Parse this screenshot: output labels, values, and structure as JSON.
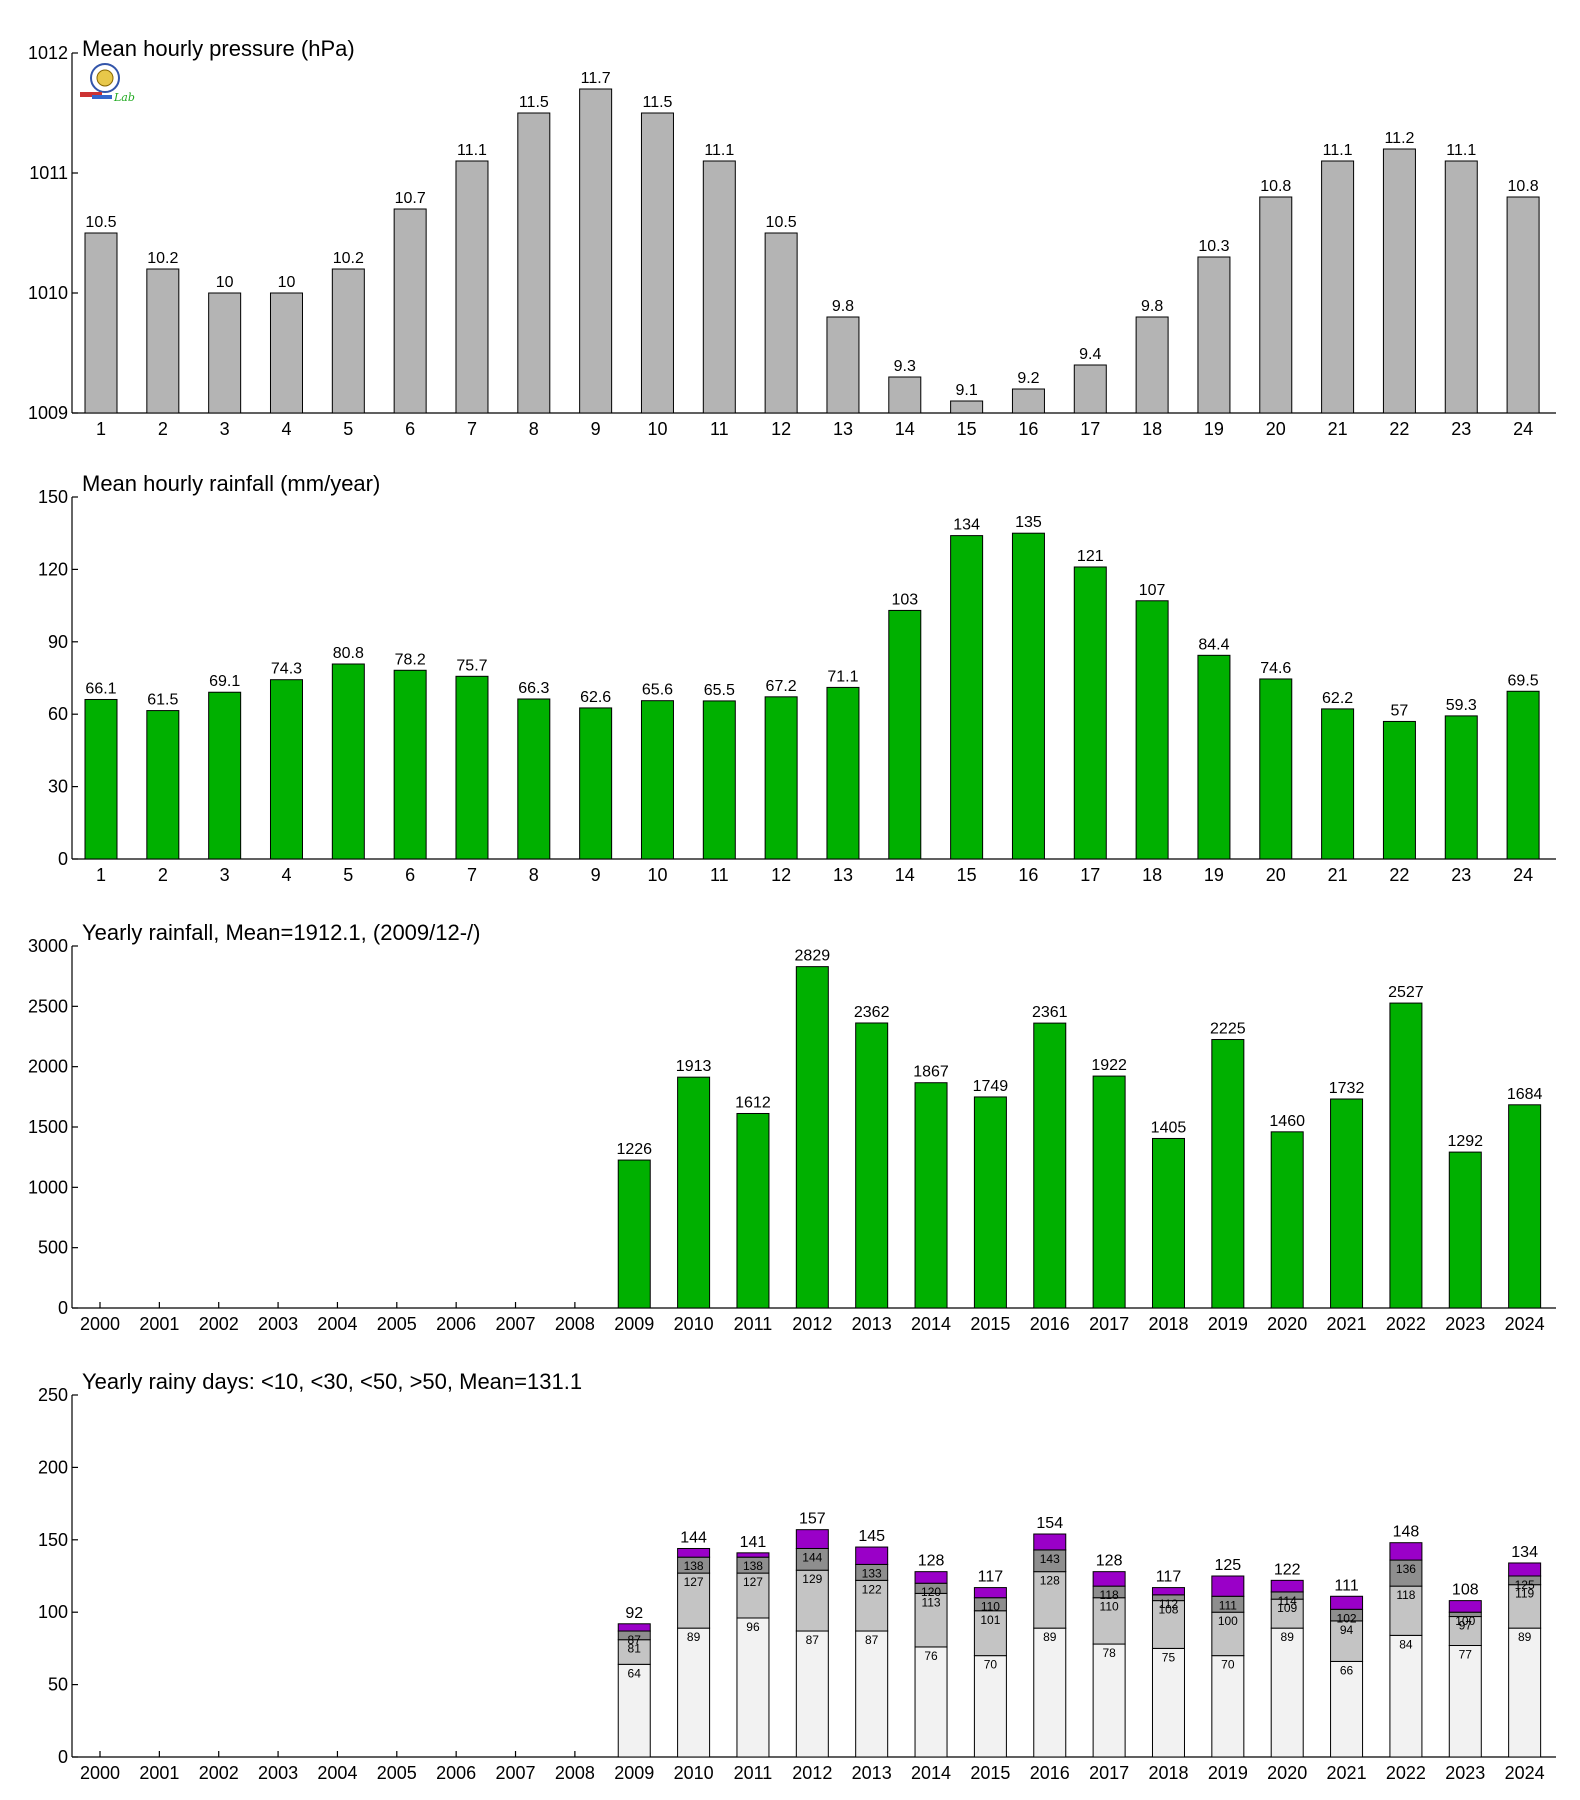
{
  "colors": {
    "pressure": "#b4b4b4",
    "rain": "#00b000",
    "seg1": "#f2f2f2",
    "seg2": "#c4c4c4",
    "seg3": "#8e8e8e",
    "seg4": "#9a00c8"
  },
  "logo": {
    "name": "lab-logo",
    "text": "Lab"
  },
  "chart_data": [
    {
      "type": "bar",
      "title": "Mean hourly pressure (hPa)",
      "categories": [
        "1",
        "2",
        "3",
        "4",
        "5",
        "6",
        "7",
        "8",
        "9",
        "10",
        "11",
        "12",
        "13",
        "14",
        "15",
        "16",
        "17",
        "18",
        "19",
        "20",
        "21",
        "22",
        "23",
        "24"
      ],
      "values": [
        1010.5,
        1010.2,
        1010.0,
        1010.0,
        1010.2,
        1010.7,
        1011.1,
        1011.5,
        1011.7,
        1011.5,
        1011.1,
        1010.5,
        1009.8,
        1009.3,
        1009.1,
        1009.2,
        1009.4,
        1009.8,
        1010.3,
        1010.8,
        1011.1,
        1011.2,
        1011.1,
        1010.8
      ],
      "data_labels": [
        "10.5",
        "10.2",
        "10",
        "10",
        "10.2",
        "10.7",
        "11.1",
        "11.5",
        "11.7",
        "11.5",
        "11.1",
        "10.5",
        "9.8",
        "9.3",
        "9.1",
        "9.2",
        "9.4",
        "9.8",
        "10.3",
        "10.8",
        "11.1",
        "11.2",
        "11.1",
        "10.8"
      ],
      "ylim": [
        1009,
        1012
      ],
      "yticks": [
        1009,
        1010,
        1011,
        1012
      ],
      "color": "#b4b4b4"
    },
    {
      "type": "bar",
      "title": "Mean hourly rainfall (mm/year)",
      "categories": [
        "1",
        "2",
        "3",
        "4",
        "5",
        "6",
        "7",
        "8",
        "9",
        "10",
        "11",
        "12",
        "13",
        "14",
        "15",
        "16",
        "17",
        "18",
        "19",
        "20",
        "21",
        "22",
        "23",
        "24"
      ],
      "values": [
        66.1,
        61.5,
        69.1,
        74.3,
        80.8,
        78.2,
        75.7,
        66.3,
        62.6,
        65.6,
        65.5,
        67.2,
        71.1,
        103,
        134,
        135,
        121,
        107,
        84.4,
        74.6,
        62.2,
        57,
        59.3,
        69.5
      ],
      "data_labels": [
        "66.1",
        "61.5",
        "69.1",
        "74.3",
        "80.8",
        "78.2",
        "75.7",
        "66.3",
        "62.6",
        "65.6",
        "65.5",
        "67.2",
        "71.1",
        "103",
        "134",
        "135",
        "121",
        "107",
        "84.4",
        "74.6",
        "62.2",
        "57",
        "59.3",
        "69.5"
      ],
      "ylim": [
        0,
        150
      ],
      "yticks": [
        0,
        30,
        60,
        90,
        120,
        150
      ],
      "color": "#00b000"
    },
    {
      "type": "bar",
      "title": "Yearly rainfall, Mean=1912.1, (2009/12-/)",
      "categories": [
        "2000",
        "2001",
        "2002",
        "2003",
        "2004",
        "2005",
        "2006",
        "2007",
        "2008",
        "2009",
        "2010",
        "2011",
        "2012",
        "2013",
        "2014",
        "2015",
        "2016",
        "2017",
        "2018",
        "2019",
        "2020",
        "2021",
        "2022",
        "2023",
        "2024"
      ],
      "values": [
        null,
        null,
        null,
        null,
        null,
        null,
        null,
        null,
        null,
        1226,
        1913,
        1612,
        2829,
        2362,
        1867,
        1749,
        2361,
        1922,
        1405,
        2225,
        1460,
        1732,
        2527,
        1292,
        1684
      ],
      "ylim": [
        0,
        3000
      ],
      "yticks": [
        0,
        500,
        1000,
        1500,
        2000,
        2500,
        3000
      ],
      "color": "#00b000"
    },
    {
      "type": "bar",
      "stacked": true,
      "title": "Yearly rainy days: <10, <30, <50, >50, Mean=131.1",
      "categories": [
        "2000",
        "2001",
        "2002",
        "2003",
        "2004",
        "2005",
        "2006",
        "2007",
        "2008",
        "2009",
        "2010",
        "2011",
        "2012",
        "2013",
        "2014",
        "2015",
        "2016",
        "2017",
        "2018",
        "2019",
        "2020",
        "2021",
        "2022",
        "2023",
        "2024"
      ],
      "cumulative": {
        "lt10": [
          null,
          null,
          null,
          null,
          null,
          null,
          null,
          null,
          null,
          64,
          89,
          96,
          87,
          87,
          76,
          70,
          89,
          78,
          75,
          70,
          89,
          66,
          84,
          77,
          89
        ],
        "lt30": [
          null,
          null,
          null,
          null,
          null,
          null,
          null,
          null,
          null,
          81,
          127,
          127,
          129,
          122,
          113,
          101,
          128,
          110,
          108,
          100,
          109,
          94,
          118,
          97,
          119
        ],
        "lt50": [
          null,
          null,
          null,
          null,
          null,
          null,
          null,
          null,
          null,
          87,
          138,
          138,
          144,
          133,
          120,
          110,
          143,
          118,
          112,
          111,
          114,
          102,
          136,
          100,
          125
        ],
        "total": [
          null,
          null,
          null,
          null,
          null,
          null,
          null,
          null,
          null,
          92,
          144,
          141,
          157,
          145,
          128,
          117,
          154,
          128,
          117,
          125,
          122,
          111,
          148,
          108,
          134
        ]
      },
      "ylim": [
        0,
        250
      ],
      "yticks": [
        0,
        50,
        100,
        150,
        200,
        250
      ]
    }
  ]
}
